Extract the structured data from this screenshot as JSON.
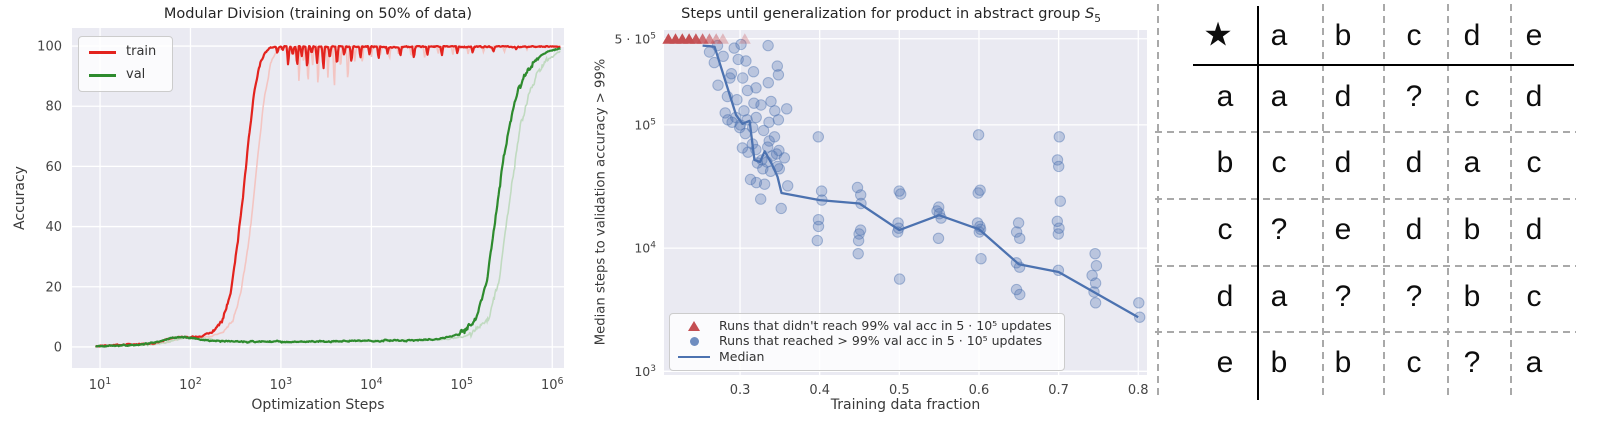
{
  "chart_data": [
    {
      "id": "modular-division",
      "type": "line",
      "title": "Modular Division (training on 50% of data)",
      "xlabel": "Optimization Steps",
      "ylabel": "Accuracy",
      "xscale": "log",
      "xlim_log10": [
        0.69,
        6.13
      ],
      "ylim": [
        -7,
        106
      ],
      "xticks": [
        {
          "base": "10",
          "exp": "1"
        },
        {
          "base": "10",
          "exp": "2"
        },
        {
          "base": "10",
          "exp": "3"
        },
        {
          "base": "10",
          "exp": "4"
        },
        {
          "base": "10",
          "exp": "5"
        },
        {
          "base": "10",
          "exp": "6"
        }
      ],
      "xticks_log10": [
        1,
        2,
        3,
        4,
        5,
        6
      ],
      "yticks": [
        0,
        20,
        40,
        60,
        80,
        100
      ],
      "plot_bg": "#eaeaf2",
      "grid_color": "#ffffff",
      "legend_position": "upper left",
      "series": [
        {
          "name": "train",
          "color": "#e3231e",
          "shadow_color": "#f3c5c2",
          "shadow_offset_log10": 0.12,
          "points": [
            [
              0.95,
              0.3
            ],
            [
              1.3,
              0.7
            ],
            [
              1.6,
              1.3
            ],
            [
              1.78,
              2.8
            ],
            [
              1.9,
              3.3
            ],
            [
              2.0,
              3.1
            ],
            [
              2.12,
              3.6
            ],
            [
              2.25,
              5
            ],
            [
              2.35,
              9
            ],
            [
              2.44,
              18
            ],
            [
              2.52,
              34
            ],
            [
              2.58,
              50
            ],
            [
              2.64,
              68
            ],
            [
              2.7,
              84
            ],
            [
              2.76,
              93
            ],
            [
              2.82,
              97.6
            ],
            [
              2.88,
              99.4
            ],
            [
              2.95,
              99.8
            ],
            [
              6.09,
              99.8
            ]
          ],
          "dips": [
            [
              2.96,
              2.0
            ],
            [
              3.02,
              1.5
            ],
            [
              3.08,
              6.5
            ],
            [
              3.13,
              3.0
            ],
            [
              3.18,
              7.0
            ],
            [
              3.23,
              3.5
            ],
            [
              3.29,
              7.5
            ],
            [
              3.34,
              2.5
            ],
            [
              3.4,
              5.5
            ],
            [
              3.47,
              8.0
            ],
            [
              3.54,
              4.0
            ],
            [
              3.62,
              6.5
            ],
            [
              3.7,
              3.0
            ],
            [
              3.78,
              5.5
            ],
            [
              3.88,
              4.0
            ],
            [
              3.98,
              3.0
            ],
            [
              4.08,
              4.5
            ],
            [
              4.18,
              2.5
            ],
            [
              4.32,
              3.5
            ],
            [
              4.47,
              4.0
            ],
            [
              4.62,
              2.5
            ],
            [
              4.78,
              3.0
            ],
            [
              4.95,
              2.5
            ],
            [
              5.12,
              2.0
            ],
            [
              5.35,
              1.5
            ],
            [
              5.6,
              1.0
            ]
          ]
        },
        {
          "name": "val",
          "color": "#2e8b2e",
          "shadow_color": "#c0dac0",
          "shadow_offset_log10": 0.13,
          "points": [
            [
              0.95,
              0.2
            ],
            [
              1.42,
              0.7
            ],
            [
              1.62,
              1.6
            ],
            [
              1.78,
              3.0
            ],
            [
              1.92,
              3.3
            ],
            [
              2.02,
              2.9
            ],
            [
              2.18,
              2.2
            ],
            [
              2.45,
              1.8
            ],
            [
              3.0,
              1.7
            ],
            [
              3.6,
              1.9
            ],
            [
              4.1,
              2.1
            ],
            [
              4.5,
              2.3
            ],
            [
              4.75,
              2.7
            ],
            [
              4.95,
              4.0
            ],
            [
              5.08,
              6.5
            ],
            [
              5.18,
              11
            ],
            [
              5.28,
              22
            ],
            [
              5.36,
              40
            ],
            [
              5.44,
              58
            ],
            [
              5.52,
              73
            ],
            [
              5.61,
              84
            ],
            [
              5.71,
              91
            ],
            [
              5.82,
              95.5
            ],
            [
              5.93,
              97.8
            ],
            [
              6.02,
              98.8
            ],
            [
              6.09,
              99.2
            ]
          ]
        }
      ]
    },
    {
      "id": "steps-to-generalization",
      "type": "scatter",
      "title": "Steps until generalization for product in abstract group",
      "title_symbol": "S",
      "title_symbol_sub": "5",
      "xlabel": "Training data fraction",
      "ylabel": "Median steps to validation accuracy > 99%",
      "yscale": "log",
      "xlim": [
        0.2045,
        0.811
      ],
      "ylim_log10": [
        2.97,
        5.77
      ],
      "xticks": [
        "0.3",
        "0.4",
        "0.5",
        "0.6",
        "0.7",
        "0.8"
      ],
      "xtick_values": [
        0.3,
        0.4,
        0.5,
        0.6,
        0.7,
        0.8
      ],
      "yticks": [
        {
          "prefix": "",
          "base": "10",
          "exp": "3",
          "value": 1000
        },
        {
          "prefix": "",
          "base": "10",
          "exp": "4",
          "value": 10000
        },
        {
          "prefix": "",
          "base": "10",
          "exp": "5",
          "value": 100000
        },
        {
          "prefix": "5 · ",
          "base": "10",
          "exp": "5",
          "value": 500000
        }
      ],
      "plot_bg": "#eaeaf2",
      "grid_color": "#ffffff",
      "colors": {
        "triangle": "#c44e52",
        "dot": "#4c72b0",
        "median": "#4c72b0"
      },
      "triangles": {
        "y": 500000,
        "points": [
          {
            "x": 0.21,
            "alpha": 1
          },
          {
            "x": 0.219,
            "alpha": 1
          },
          {
            "x": 0.2275,
            "alpha": 1
          },
          {
            "x": 0.236,
            "alpha": 1
          },
          {
            "x": 0.2445,
            "alpha": 0.95
          },
          {
            "x": 0.253,
            "alpha": 0.8
          },
          {
            "x": 0.2615,
            "alpha": 0.62
          },
          {
            "x": 0.27,
            "alpha": 0.45
          },
          {
            "x": 0.2785,
            "alpha": 0.32
          },
          {
            "x": 0.306,
            "alpha": 0.3
          }
        ]
      },
      "scatter_points": [
        [
          0.262,
          390000
        ],
        [
          0.268,
          320000
        ],
        [
          0.273,
          440000
        ],
        [
          0.273,
          210000
        ],
        [
          0.279,
          360000
        ],
        [
          0.279,
          125000
        ],
        [
          0.285,
          240000
        ],
        [
          0.285,
          170000
        ],
        [
          0.285,
          110000
        ],
        [
          0.291,
          420000
        ],
        [
          0.291,
          260000
        ],
        [
          0.291,
          105000
        ],
        [
          0.297,
          340000
        ],
        [
          0.297,
          160000
        ],
        [
          0.297,
          115000
        ],
        [
          0.297,
          95000
        ],
        [
          0.303,
          450000
        ],
        [
          0.303,
          240000
        ],
        [
          0.303,
          130000
        ],
        [
          0.303,
          100000
        ],
        [
          0.303,
          65000
        ],
        [
          0.309,
          330000
        ],
        [
          0.309,
          190000
        ],
        [
          0.309,
          110000
        ],
        [
          0.309,
          85000
        ],
        [
          0.309,
          60000
        ],
        [
          0.315,
          270000
        ],
        [
          0.315,
          150000
        ],
        [
          0.315,
          95000
        ],
        [
          0.315,
          70000
        ],
        [
          0.315,
          36000
        ],
        [
          0.321,
          200000
        ],
        [
          0.321,
          115000
        ],
        [
          0.321,
          63000
        ],
        [
          0.321,
          49000
        ],
        [
          0.321,
          34000
        ],
        [
          0.327,
          145000
        ],
        [
          0.327,
          90000
        ],
        [
          0.327,
          52000
        ],
        [
          0.327,
          44000
        ],
        [
          0.327,
          25000
        ],
        [
          0.333,
          440000
        ],
        [
          0.333,
          220000
        ],
        [
          0.333,
          66000
        ],
        [
          0.333,
          50000
        ],
        [
          0.333,
          33000
        ],
        [
          0.339,
          155000
        ],
        [
          0.339,
          105000
        ],
        [
          0.339,
          74000
        ],
        [
          0.339,
          56000
        ],
        [
          0.339,
          42000
        ],
        [
          0.345,
          300000
        ],
        [
          0.345,
          130000
        ],
        [
          0.345,
          80000
        ],
        [
          0.345,
          58000
        ],
        [
          0.345,
          46000
        ],
        [
          0.351,
          255000
        ],
        [
          0.351,
          110000
        ],
        [
          0.351,
          62000
        ],
        [
          0.351,
          44000
        ],
        [
          0.351,
          21000
        ],
        [
          0.357,
          135000
        ],
        [
          0.357,
          54000
        ],
        [
          0.357,
          32000
        ],
        [
          0.4,
          80000
        ],
        [
          0.4,
          29000
        ],
        [
          0.4,
          24500
        ],
        [
          0.4,
          17000
        ],
        [
          0.4,
          15000
        ],
        [
          0.4,
          11500
        ],
        [
          0.45,
          31000
        ],
        [
          0.45,
          27000
        ],
        [
          0.45,
          23000
        ],
        [
          0.45,
          14000
        ],
        [
          0.45,
          13000
        ],
        [
          0.45,
          11500
        ],
        [
          0.45,
          9000
        ],
        [
          0.5,
          29000
        ],
        [
          0.5,
          27500
        ],
        [
          0.5,
          16000
        ],
        [
          0.5,
          14500
        ],
        [
          0.5,
          13500
        ],
        [
          0.5,
          5600
        ],
        [
          0.55,
          21500
        ],
        [
          0.55,
          20000
        ],
        [
          0.55,
          19000
        ],
        [
          0.55,
          17500
        ],
        [
          0.55,
          12000
        ],
        [
          0.6,
          83000
        ],
        [
          0.6,
          29500
        ],
        [
          0.6,
          28000
        ],
        [
          0.6,
          16000
        ],
        [
          0.6,
          15000
        ],
        [
          0.6,
          14200
        ],
        [
          0.6,
          13500
        ],
        [
          0.6,
          8200
        ],
        [
          0.65,
          16000
        ],
        [
          0.65,
          13500
        ],
        [
          0.65,
          12000
        ],
        [
          0.65,
          7600
        ],
        [
          0.65,
          7000
        ],
        [
          0.65,
          4600
        ],
        [
          0.65,
          4200
        ],
        [
          0.7,
          80000
        ],
        [
          0.7,
          52000
        ],
        [
          0.7,
          46000
        ],
        [
          0.7,
          24000
        ],
        [
          0.7,
          16500
        ],
        [
          0.7,
          14500
        ],
        [
          0.7,
          13000
        ],
        [
          0.7,
          6600
        ],
        [
          0.745,
          9000
        ],
        [
          0.745,
          7200
        ],
        [
          0.745,
          6000
        ],
        [
          0.745,
          5200
        ],
        [
          0.745,
          4400
        ],
        [
          0.745,
          3600
        ],
        [
          0.8,
          3600
        ],
        [
          0.8,
          2750
        ]
      ],
      "median_line": [
        [
          0.253,
          440000
        ],
        [
          0.262,
          435000
        ],
        [
          0.268,
          430000
        ],
        [
          0.295,
          120000
        ],
        [
          0.303,
          102000
        ],
        [
          0.312,
          108000
        ],
        [
          0.318,
          52000
        ],
        [
          0.325,
          50000
        ],
        [
          0.331,
          61000
        ],
        [
          0.34,
          48000
        ],
        [
          0.347,
          38000
        ],
        [
          0.352,
          28000
        ],
        [
          0.4,
          24500
        ],
        [
          0.45,
          23000
        ],
        [
          0.5,
          14000
        ],
        [
          0.55,
          18500
        ],
        [
          0.6,
          14200
        ],
        [
          0.65,
          7400
        ],
        [
          0.7,
          6400
        ],
        [
          0.8,
          2750
        ]
      ],
      "legend": [
        {
          "marker": "triangle",
          "label": "Runs that didn't reach 99% val acc in 5 · 10⁵ updates"
        },
        {
          "marker": "dot",
          "label": "Runs that reached > 99% val acc in 5 · 10⁵ updates"
        },
        {
          "marker": "line",
          "label": "Median"
        }
      ]
    },
    {
      "id": "group-operation-table",
      "type": "table",
      "operator_symbol": "★",
      "unknown_symbol": "?",
      "columns": [
        "a",
        "b",
        "c",
        "d",
        "e"
      ],
      "rows": [
        {
          "label": "a",
          "cells": [
            "a",
            "d",
            "?",
            "c",
            "d"
          ]
        },
        {
          "label": "b",
          "cells": [
            "c",
            "d",
            "d",
            "a",
            "c"
          ]
        },
        {
          "label": "c",
          "cells": [
            "?",
            "e",
            "d",
            "b",
            "d"
          ]
        },
        {
          "label": "d",
          "cells": [
            "a",
            "?",
            "?",
            "b",
            "c"
          ]
        },
        {
          "label": "e",
          "cells": [
            "b",
            "b",
            "c",
            "?",
            "a"
          ]
        }
      ]
    }
  ]
}
